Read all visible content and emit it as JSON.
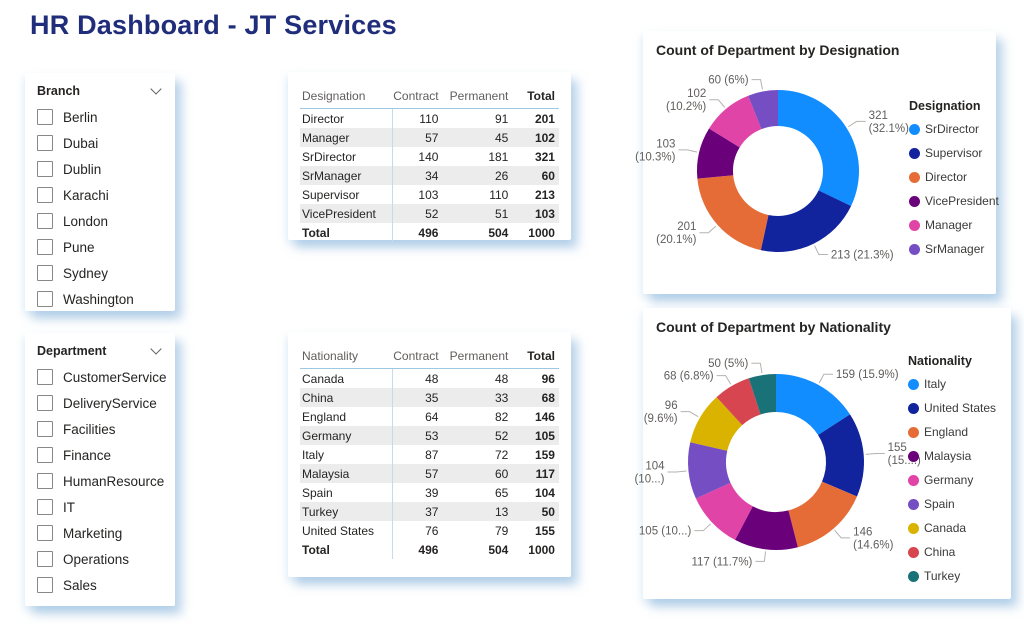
{
  "title": "HR Dashboard - JT Services",
  "theme": {
    "title_color": "#1f2d7b",
    "table_grid_blue": "#9dc8e4",
    "row_stripe": "#ececec",
    "label_gray": "#605e5c"
  },
  "filters": [
    {
      "id": "branch",
      "label": "Branch",
      "items": [
        "Berlin",
        "Dubai",
        "Dublin",
        "Karachi",
        "London",
        "Pune",
        "Sydney",
        "Washington"
      ]
    },
    {
      "id": "department",
      "label": "Department",
      "items": [
        "CustomerService",
        "DeliveryService",
        "Facilities",
        "Finance",
        "HumanResource",
        "IT",
        "Marketing",
        "Operations",
        "Sales"
      ]
    }
  ],
  "tables": [
    {
      "id": "designation",
      "columns": [
        "Designation",
        "Contract",
        "Permanent",
        "Total"
      ],
      "rows": [
        [
          "Director",
          "110",
          "91",
          "201"
        ],
        [
          "Manager",
          "57",
          "45",
          "102"
        ],
        [
          "SrDirector",
          "140",
          "181",
          "321"
        ],
        [
          "SrManager",
          "34",
          "26",
          "60"
        ],
        [
          "Supervisor",
          "103",
          "110",
          "213"
        ],
        [
          "VicePresident",
          "52",
          "51",
          "103"
        ]
      ],
      "total_row": [
        "Total",
        "496",
        "504",
        "1000"
      ]
    },
    {
      "id": "nationality",
      "columns": [
        "Nationality",
        "Contract",
        "Permanent",
        "Total"
      ],
      "rows": [
        [
          "Canada",
          "48",
          "48",
          "96"
        ],
        [
          "China",
          "35",
          "33",
          "68"
        ],
        [
          "England",
          "64",
          "82",
          "146"
        ],
        [
          "Germany",
          "53",
          "52",
          "105"
        ],
        [
          "Italy",
          "87",
          "72",
          "159"
        ],
        [
          "Malaysia",
          "57",
          "60",
          "117"
        ],
        [
          "Spain",
          "39",
          "65",
          "104"
        ],
        [
          "Turkey",
          "37",
          "13",
          "50"
        ],
        [
          "United States",
          "76",
          "79",
          "155"
        ]
      ],
      "total_row": [
        "Total",
        "496",
        "504",
        "1000"
      ]
    }
  ],
  "chart_data": [
    {
      "type": "pie",
      "subtype": "donut",
      "title": "Count of Department by Designation",
      "legend_title": "Designation",
      "legend_position": "right",
      "categories": [
        "SrDirector",
        "Supervisor",
        "Director",
        "VicePresident",
        "Manager",
        "SrManager"
      ],
      "values": [
        321,
        213,
        201,
        103,
        102,
        60
      ],
      "labels": [
        [
          "321",
          "(32.1%)"
        ],
        [
          "213 (21.3%)"
        ],
        [
          "201",
          "(20.1%)"
        ],
        [
          "103",
          "(10.3%)"
        ],
        [
          "102",
          "(10.2%)"
        ],
        [
          "60 (6%)"
        ]
      ],
      "colors": [
        "#118DFF",
        "#12239E",
        "#E66C37",
        "#6B007B",
        "#E044A7",
        "#744EC2"
      ]
    },
    {
      "type": "pie",
      "subtype": "donut",
      "title": "Count of Department by Nationality",
      "legend_title": "Nationality",
      "legend_position": "right",
      "categories": [
        "Italy",
        "United States",
        "England",
        "Malaysia",
        "Germany",
        "Spain",
        "Canada",
        "China",
        "Turkey"
      ],
      "values": [
        159,
        155,
        146,
        117,
        105,
        104,
        96,
        68,
        50
      ],
      "labels": [
        [
          "159 (15.9%)"
        ],
        [
          "155",
          "(15....)"
        ],
        [
          "146",
          "(14.6%)"
        ],
        [
          "117 (11.7%)"
        ],
        [
          "105 (10...)"
        ],
        [
          "104",
          "(10...)"
        ],
        [
          "96",
          "(9.6%)"
        ],
        [
          "68 (6.8%)"
        ],
        [
          "50 (5%)"
        ]
      ],
      "colors": [
        "#118DFF",
        "#12239E",
        "#E66C37",
        "#6B007B",
        "#E044A7",
        "#744EC2",
        "#D9B300",
        "#D64550",
        "#197278"
      ]
    }
  ]
}
